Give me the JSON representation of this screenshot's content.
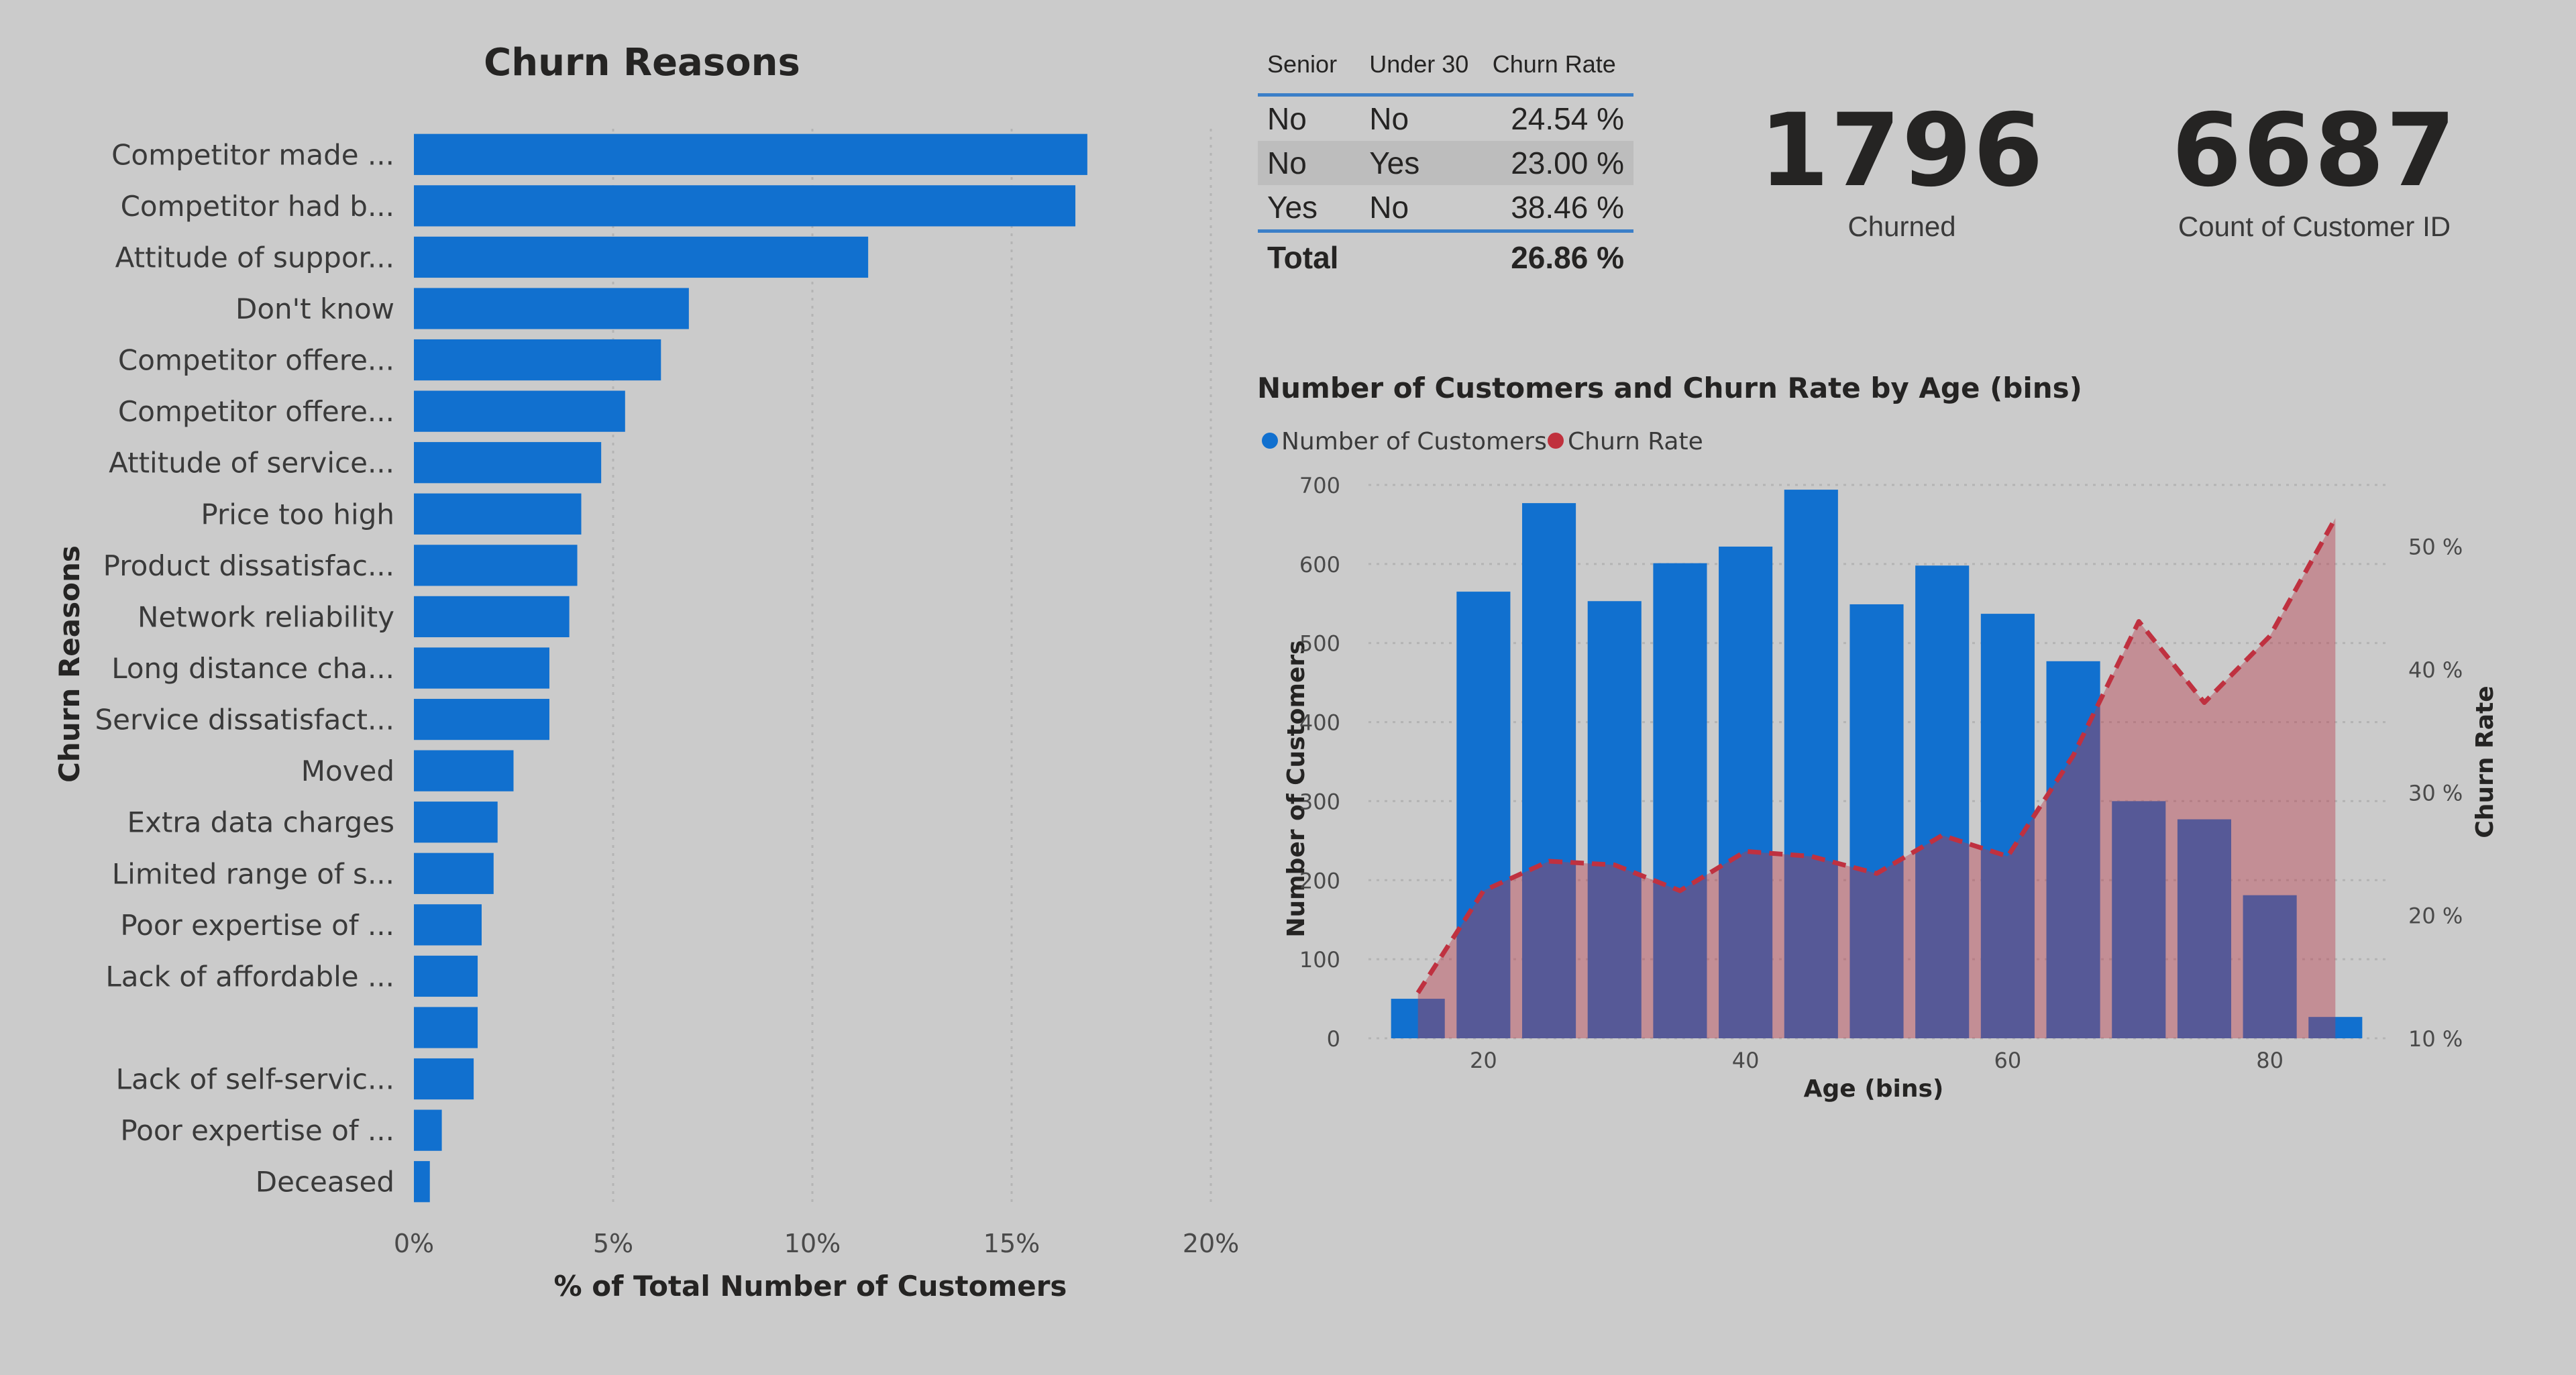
{
  "churn_reasons_chart": {
    "type": "bar",
    "orientation": "horizontal",
    "title": "Churn Reasons",
    "xlabel": "% of Total Number of Customers",
    "ylabel": "Churn Reasons",
    "xlim": [
      0,
      20
    ],
    "xticks": [
      "0%",
      "5%",
      "10%",
      "15%",
      "20%"
    ],
    "grid": true,
    "color": "#1170cf",
    "categories": [
      "Competitor made ...",
      "Competitor had b...",
      "Attitude of suppor...",
      "Don't know",
      "Competitor offere...",
      "Competitor offere...",
      "Attitude of service...",
      "Price too high",
      "Product dissatisfac...",
      "Network reliability",
      "Long distance cha...",
      "Service dissatisfact...",
      "Moved",
      "Extra data charges",
      "Limited range of s...",
      "Poor expertise of ...",
      "Lack of affordable ...",
      "",
      "Lack of self-servic...",
      "Poor expertise of ...",
      "Deceased"
    ],
    "values": [
      16.9,
      16.6,
      11.4,
      6.9,
      6.2,
      5.3,
      4.7,
      4.2,
      4.1,
      3.9,
      3.4,
      3.4,
      2.5,
      2.1,
      2.0,
      1.7,
      1.6,
      1.6,
      1.5,
      0.7,
      0.4
    ]
  },
  "senior_table": {
    "headers": [
      "Senior",
      "Under 30",
      "Churn Rate"
    ],
    "rows": [
      {
        "senior": "No",
        "under30": "No",
        "rate": "24.54 %"
      },
      {
        "senior": "No",
        "under30": "Yes",
        "rate": "23.00 %"
      },
      {
        "senior": "Yes",
        "under30": "No",
        "rate": "38.46 %"
      }
    ],
    "total_label": "Total",
    "total_rate": "26.86 %"
  },
  "kpis": {
    "churned_value": "1796",
    "churned_label": "Churned",
    "count_value": "6687",
    "count_label": "Count of Customer ID"
  },
  "age_chart": {
    "type": "bar+area",
    "title": "Number of Customers and Churn Rate by Age (bins)",
    "xlabel": "Age (bins)",
    "ylabel": "Number of Customers",
    "y2label": "Churn Rate",
    "legend": [
      {
        "name": "Number of Customers",
        "color": "#1170cf"
      },
      {
        "name": "Churn Rate",
        "color": "#c0313d"
      }
    ],
    "legend_position": "top-left",
    "xlim": [
      10,
      90
    ],
    "xticks": [
      20,
      40,
      60,
      80
    ],
    "ylim": [
      0,
      700
    ],
    "yticks": [
      0,
      100,
      200,
      300,
      400,
      500,
      600,
      700
    ],
    "y2lim": [
      10,
      55
    ],
    "y2ticks": [
      "10 %",
      "20 %",
      "30 %",
      "40 %",
      "50 %"
    ],
    "y2tick_values": [
      10,
      20,
      30,
      40,
      50
    ],
    "customers": {
      "x": [
        15,
        20,
        25,
        30,
        35,
        40,
        45,
        50,
        55,
        60,
        65,
        70,
        75,
        80,
        85
      ],
      "values": [
        50,
        565,
        677,
        553,
        601,
        622,
        694,
        549,
        598,
        537,
        477,
        300,
        277,
        181,
        27
      ]
    },
    "churn_rate": {
      "x": [
        15,
        20,
        25,
        30,
        35,
        40,
        45,
        50,
        55,
        60,
        65,
        70,
        75,
        80,
        85
      ],
      "values": [
        13.7,
        22.0,
        24.4,
        24.1,
        22.0,
        25.2,
        24.8,
        23.4,
        26.5,
        24.8,
        33.0,
        43.9,
        37.3,
        42.7,
        52.3
      ]
    }
  }
}
